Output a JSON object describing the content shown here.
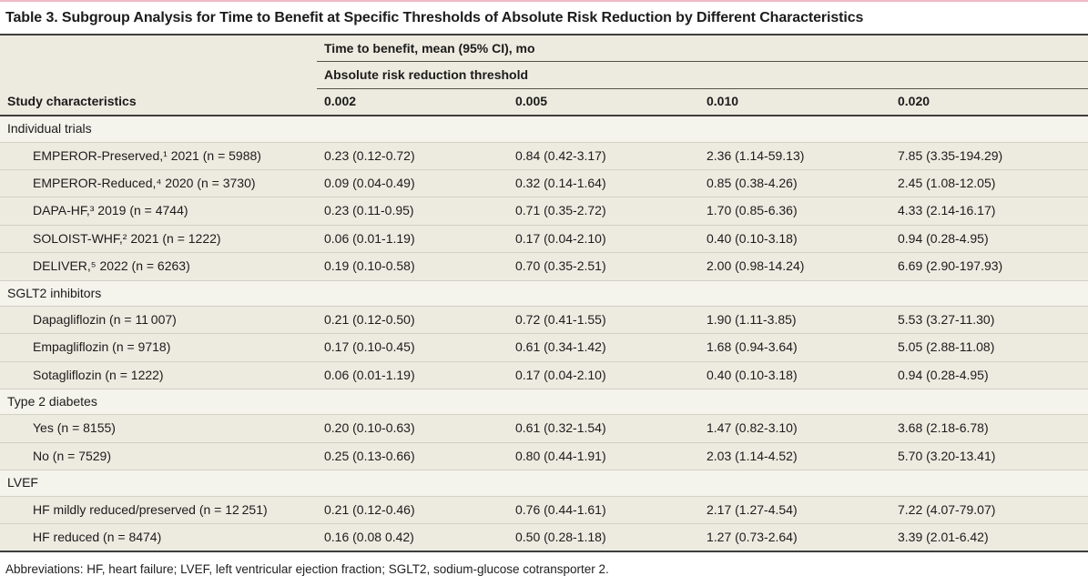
{
  "page": {
    "title": "Table 3. Subgroup Analysis for Time to Benefit at Specific Thresholds of Absolute Risk Reduction by Different Characteristics",
    "accent_color": "#f1b8c4",
    "table_bg_color": "#edebe0",
    "section_bg_color": "#f4f3ec",
    "rule_color": "#3e3e3e"
  },
  "table": {
    "header": {
      "col_group_label": "Time to benefit, mean (95% CI), mo",
      "sub_group_label": "Absolute risk reduction threshold",
      "row_header_label": "Study characteristics",
      "threshold_columns": [
        "0.002",
        "0.005",
        "0.010",
        "0.020"
      ]
    },
    "sections": [
      {
        "label": "Individual trials",
        "rows": [
          {
            "label": "EMPEROR-Preserved,¹ 2021 (n = 5988)",
            "values": [
              "0.23 (0.12-0.72)",
              "0.84 (0.42-3.17)",
              "2.36 (1.14-59.13)",
              "7.85 (3.35-194.29)"
            ]
          },
          {
            "label": "EMPEROR-Reduced,⁴ 2020 (n = 3730)",
            "values": [
              "0.09 (0.04-0.49)",
              "0.32 (0.14-1.64)",
              "0.85 (0.38-4.26)",
              "2.45 (1.08-12.05)"
            ]
          },
          {
            "label": "DAPA-HF,³ 2019 (n = 4744)",
            "values": [
              "0.23 (0.11-0.95)",
              "0.71 (0.35-2.72)",
              "1.70 (0.85-6.36)",
              "4.33 (2.14-16.17)"
            ]
          },
          {
            "label": "SOLOIST-WHF,² 2021 (n = 1222)",
            "values": [
              "0.06 (0.01-1.19)",
              "0.17 (0.04-2.10)",
              "0.40 (0.10-3.18)",
              "0.94 (0.28-4.95)"
            ]
          },
          {
            "label": "DELIVER,⁵ 2022 (n = 6263)",
            "values": [
              "0.19 (0.10-0.58)",
              "0.70 (0.35-2.51)",
              "2.00 (0.98-14.24)",
              "6.69 (2.90-197.93)"
            ]
          }
        ]
      },
      {
        "label": "SGLT2 inhibitors",
        "rows": [
          {
            "label": "Dapagliflozin (n = 11 007)",
            "values": [
              "0.21 (0.12-0.50)",
              "0.72 (0.41-1.55)",
              "1.90 (1.11-3.85)",
              "5.53 (3.27-11.30)"
            ]
          },
          {
            "label": "Empagliflozin (n = 9718)",
            "values": [
              "0.17 (0.10-0.45)",
              "0.61 (0.34-1.42)",
              "1.68 (0.94-3.64)",
              "5.05 (2.88-11.08)"
            ]
          },
          {
            "label": "Sotagliflozin (n = 1222)",
            "values": [
              "0.06 (0.01-1.19)",
              "0.17 (0.04-2.10)",
              "0.40 (0.10-3.18)",
              "0.94 (0.28-4.95)"
            ]
          }
        ]
      },
      {
        "label": "Type 2 diabetes",
        "rows": [
          {
            "label": "Yes (n = 8155)",
            "values": [
              "0.20 (0.10-0.63)",
              "0.61 (0.32-1.54)",
              "1.47 (0.82-3.10)",
              "3.68 (2.18-6.78)"
            ]
          },
          {
            "label": "No (n = 7529)",
            "values": [
              "0.25 (0.13-0.66)",
              "0.80 (0.44-1.91)",
              "2.03 (1.14-4.52)",
              "5.70 (3.20-13.41)"
            ]
          }
        ]
      },
      {
        "label": "LVEF",
        "rows": [
          {
            "label": "HF mildly reduced/preserved (n = 12 251)",
            "values": [
              "0.21 (0.12-0.46)",
              "0.76 (0.44-1.61)",
              "2.17 (1.27-4.54)",
              "7.22 (4.07-79.07)"
            ]
          },
          {
            "label": "HF reduced (n = 8474)",
            "values": [
              "0.16 (0.08 0.42)",
              "0.50 (0.28-1.18)",
              "1.27 (0.73-2.64)",
              "3.39 (2.01-6.42)"
            ]
          }
        ]
      }
    ],
    "footnote": "Abbreviations: HF, heart failure; LVEF, left ventricular ejection fraction; SGLT2, sodium-glucose cotransporter 2."
  }
}
